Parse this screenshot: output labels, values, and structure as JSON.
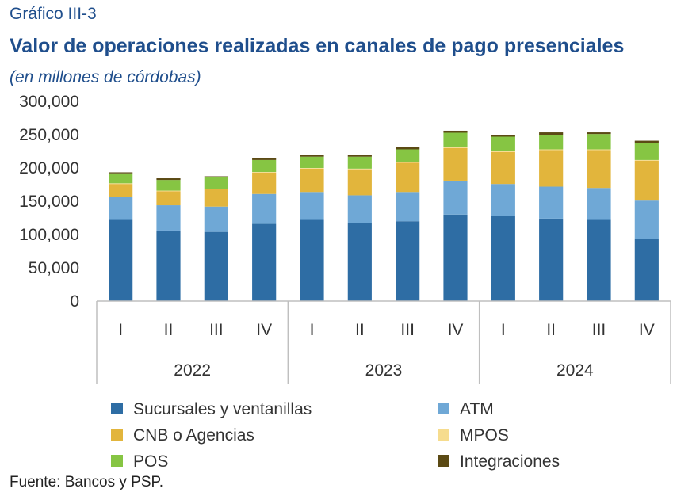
{
  "kicker": "Gráfico III-3",
  "title": "Valor de operaciones realizadas en canales de pago presenciales",
  "subtitle": "(en millones de córdobas)",
  "source": "Fuente: Bancos y PSP.",
  "chart_data": {
    "type": "bar",
    "stacked": true,
    "title": "Valor de operaciones realizadas en canales de pago presenciales",
    "ylim": [
      0,
      300000
    ],
    "yticks": [
      "0",
      "50,000",
      "100,000",
      "150,000",
      "200,000",
      "250,000",
      "300,000"
    ],
    "yticks_values": [
      0,
      50000,
      100000,
      150000,
      200000,
      250000,
      300000
    ],
    "categories": [
      "I",
      "II",
      "III",
      "IV",
      "I",
      "II",
      "III",
      "IV",
      "I",
      "II",
      "III",
      "IV"
    ],
    "groups": [
      {
        "label": "2022",
        "count": 4
      },
      {
        "label": "2023",
        "count": 4
      },
      {
        "label": "2024",
        "count": 4
      }
    ],
    "series": [
      {
        "name": "Sucursales y ventanillas",
        "color": "#2e6da4",
        "values": [
          122000,
          106000,
          104000,
          116000,
          122000,
          117000,
          120000,
          130000,
          128000,
          124000,
          122000,
          94000
        ]
      },
      {
        "name": "ATM",
        "color": "#6fa8d6",
        "values": [
          35000,
          38000,
          38000,
          45000,
          42000,
          42000,
          44000,
          51000,
          48000,
          48000,
          48000,
          57000
        ]
      },
      {
        "name": "CNB o Agencias",
        "color": "#e2b53c",
        "values": [
          19000,
          21000,
          26000,
          32000,
          35000,
          39000,
          44000,
          49000,
          48000,
          55000,
          57000,
          60000
        ]
      },
      {
        "name": "MPOS",
        "color": "#f6dc8e",
        "values": [
          1000,
          1000,
          1000,
          1000,
          1000,
          1000,
          1000,
          1000,
          1000,
          1000,
          1000,
          1000
        ]
      },
      {
        "name": "POS",
        "color": "#86c543",
        "values": [
          15000,
          16000,
          17000,
          18000,
          17000,
          18000,
          19000,
          22000,
          22000,
          22000,
          23000,
          25000
        ]
      },
      {
        "name": "Integraciones",
        "color": "#5b4a14",
        "values": [
          1500,
          2500,
          1500,
          2500,
          2500,
          3000,
          3000,
          3000,
          2500,
          3500,
          2500,
          4000
        ]
      }
    ],
    "legend": [
      "Sucursales y ventanillas",
      "ATM",
      "CNB o Agencias",
      "MPOS",
      "POS",
      "Integraciones"
    ],
    "legend_position": "bottom",
    "grid": false
  }
}
